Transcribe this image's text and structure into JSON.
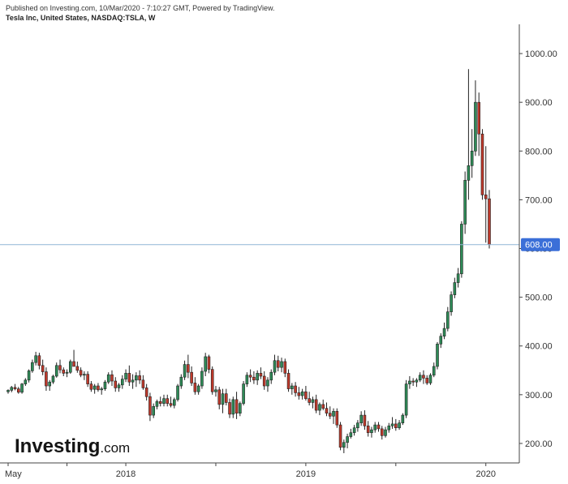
{
  "header": {
    "published": "Published on Investing.com, 10/Mar/2020 - 7:10:27 GMT, Powered by TradingView.",
    "symbol": "Tesla Inc, United States, NASDAQ:TSLA, W"
  },
  "logo": {
    "brand": "Investing",
    "suffix": ".com"
  },
  "colors": {
    "up": "#2e8b57",
    "down": "#c0392b",
    "outline": "#222222",
    "last_price_bg": "#3b6fd8",
    "price_line": "#8fb5d6",
    "axis": "#444444"
  },
  "chart_data": {
    "type": "candlestick",
    "title": "Tesla Inc, United States, NASDAQ:TSLA, W",
    "interval": "W",
    "ylim": [
      160,
      1060
    ],
    "y_ticks": [
      {
        "value": 200,
        "label": "200.00"
      },
      {
        "value": 300,
        "label": "300.00"
      },
      {
        "value": 400,
        "label": "400.00"
      },
      {
        "value": 500,
        "label": "500.00"
      },
      {
        "value": 600,
        "label": "600.00"
      },
      {
        "value": 700,
        "label": "700.00"
      },
      {
        "value": 800,
        "label": "800.00"
      },
      {
        "value": 900,
        "label": "900.00"
      },
      {
        "value": 1000,
        "label": "1000.00"
      }
    ],
    "last_price": {
      "value": 608,
      "label": "608.00"
    },
    "x_labels": [
      {
        "index": 0,
        "label": "May"
      },
      {
        "index": 34,
        "label": "2018"
      },
      {
        "index": 86,
        "label": "2019"
      },
      {
        "index": 138,
        "label": "2020"
      }
    ],
    "grid": false,
    "candles": [
      [
        306,
        311,
        302,
        309
      ],
      [
        309,
        318,
        305,
        315
      ],
      [
        315,
        322,
        309,
        312
      ],
      [
        312,
        316,
        302,
        305
      ],
      [
        305,
        324,
        302,
        322
      ],
      [
        322,
        334,
        318,
        330
      ],
      [
        330,
        352,
        325,
        349
      ],
      [
        349,
        372,
        345,
        366
      ],
      [
        366,
        388,
        360,
        380
      ],
      [
        380,
        386,
        352,
        360
      ],
      [
        360,
        372,
        340,
        347
      ],
      [
        347,
        356,
        308,
        318
      ],
      [
        318,
        330,
        308,
        326
      ],
      [
        326,
        341,
        322,
        338
      ],
      [
        338,
        366,
        335,
        360
      ],
      [
        360,
        372,
        344,
        351
      ],
      [
        351,
        356,
        338,
        344
      ],
      [
        344,
        352,
        336,
        346
      ],
      [
        346,
        372,
        343,
        368
      ],
      [
        368,
        392,
        362,
        358
      ],
      [
        358,
        368,
        345,
        350
      ],
      [
        350,
        356,
        336,
        340
      ],
      [
        340,
        348,
        330,
        342
      ],
      [
        342,
        348,
        316,
        322
      ],
      [
        322,
        328,
        306,
        311
      ],
      [
        311,
        322,
        302,
        318
      ],
      [
        318,
        324,
        306,
        310
      ],
      [
        310,
        316,
        300,
        312
      ],
      [
        312,
        330,
        308,
        326
      ],
      [
        326,
        346,
        322,
        341
      ],
      [
        341,
        350,
        318,
        328
      ],
      [
        328,
        336,
        306,
        314
      ],
      [
        314,
        324,
        306,
        320
      ],
      [
        320,
        340,
        312,
        332
      ],
      [
        332,
        352,
        326,
        344
      ],
      [
        344,
        360,
        318,
        326
      ],
      [
        326,
        342,
        312,
        330
      ],
      [
        330,
        346,
        316,
        339
      ],
      [
        339,
        350,
        322,
        330
      ],
      [
        330,
        340,
        310,
        314
      ],
      [
        314,
        322,
        288,
        296
      ],
      [
        296,
        304,
        246,
        258
      ],
      [
        258,
        282,
        252,
        276
      ],
      [
        276,
        290,
        270,
        286
      ],
      [
        286,
        296,
        276,
        282
      ],
      [
        282,
        300,
        276,
        292
      ],
      [
        292,
        300,
        276,
        282
      ],
      [
        282,
        296,
        274,
        278
      ],
      [
        278,
        294,
        272,
        290
      ],
      [
        290,
        322,
        286,
        318
      ],
      [
        318,
        342,
        312,
        336
      ],
      [
        336,
        370,
        330,
        362
      ],
      [
        362,
        382,
        334,
        346
      ],
      [
        346,
        358,
        318,
        324
      ],
      [
        324,
        336,
        300,
        306
      ],
      [
        306,
        322,
        300,
        318
      ],
      [
        318,
        356,
        312,
        348
      ],
      [
        348,
        386,
        338,
        378
      ],
      [
        378,
        382,
        344,
        352
      ],
      [
        352,
        358,
        300,
        306
      ],
      [
        306,
        318,
        296,
        310
      ],
      [
        310,
        316,
        270,
        280
      ],
      [
        280,
        312,
        262,
        302
      ],
      [
        302,
        312,
        278,
        284
      ],
      [
        284,
        292,
        252,
        260
      ],
      [
        260,
        296,
        252,
        290
      ],
      [
        290,
        306,
        250,
        262
      ],
      [
        262,
        286,
        256,
        282
      ],
      [
        282,
        328,
        278,
        322
      ],
      [
        322,
        346,
        316,
        340
      ],
      [
        340,
        352,
        326,
        336
      ],
      [
        336,
        348,
        322,
        330
      ],
      [
        330,
        350,
        320,
        344
      ],
      [
        344,
        356,
        332,
        338
      ],
      [
        338,
        348,
        310,
        318
      ],
      [
        318,
        336,
        306,
        330
      ],
      [
        330,
        352,
        322,
        346
      ],
      [
        346,
        382,
        340,
        370
      ],
      [
        370,
        380,
        348,
        356
      ],
      [
        356,
        376,
        346,
        368
      ],
      [
        368,
        374,
        336,
        344
      ],
      [
        344,
        352,
        306,
        312
      ],
      [
        312,
        324,
        300,
        318
      ],
      [
        318,
        326,
        296,
        304
      ],
      [
        304,
        316,
        290,
        298
      ],
      [
        298,
        312,
        290,
        306
      ],
      [
        306,
        318,
        288,
        292
      ],
      [
        292,
        306,
        278,
        284
      ],
      [
        284,
        296,
        272,
        290
      ],
      [
        290,
        300,
        262,
        268
      ],
      [
        268,
        284,
        258,
        280
      ],
      [
        280,
        290,
        268,
        272
      ],
      [
        272,
        284,
        256,
        262
      ],
      [
        262,
        276,
        250,
        256
      ],
      [
        256,
        272,
        240,
        266
      ],
      [
        266,
        272,
        232,
        238
      ],
      [
        238,
        244,
        186,
        192
      ],
      [
        192,
        208,
        180,
        202
      ],
      [
        202,
        220,
        190,
        214
      ],
      [
        214,
        230,
        210,
        222
      ],
      [
        222,
        238,
        216,
        232
      ],
      [
        232,
        248,
        224,
        242
      ],
      [
        242,
        266,
        236,
        258
      ],
      [
        258,
        268,
        228,
        236
      ],
      [
        236,
        246,
        214,
        222
      ],
      [
        222,
        234,
        212,
        228
      ],
      [
        228,
        244,
        222,
        238
      ],
      [
        238,
        244,
        224,
        230
      ],
      [
        230,
        236,
        208,
        216
      ],
      [
        216,
        234,
        212,
        228
      ],
      [
        228,
        242,
        222,
        236
      ],
      [
        236,
        254,
        230,
        240
      ],
      [
        240,
        250,
        226,
        232
      ],
      [
        232,
        248,
        228,
        242
      ],
      [
        242,
        262,
        238,
        258
      ],
      [
        258,
        330,
        252,
        322
      ],
      [
        322,
        338,
        312,
        328
      ],
      [
        328,
        334,
        318,
        326
      ],
      [
        326,
        334,
        316,
        330
      ],
      [
        330,
        346,
        326,
        340
      ],
      [
        340,
        350,
        322,
        334
      ],
      [
        334,
        340,
        320,
        324
      ],
      [
        324,
        344,
        320,
        340
      ],
      [
        340,
        366,
        336,
        358
      ],
      [
        358,
        408,
        352,
        404
      ],
      [
        404,
        426,
        396,
        420
      ],
      [
        420,
        448,
        414,
        436
      ],
      [
        436,
        480,
        430,
        470
      ],
      [
        470,
        512,
        462,
        505
      ],
      [
        505,
        540,
        498,
        530
      ],
      [
        530,
        560,
        520,
        548
      ],
      [
        548,
        656,
        540,
        650
      ],
      [
        650,
        758,
        630,
        740
      ],
      [
        740,
        968,
        700,
        770
      ],
      [
        770,
        845,
        745,
        800
      ],
      [
        800,
        945,
        790,
        900
      ],
      [
        900,
        920,
        790,
        835
      ],
      [
        835,
        845,
        700,
        710
      ],
      [
        710,
        810,
        612,
        702
      ],
      [
        702,
        720,
        600,
        608
      ]
    ]
  }
}
